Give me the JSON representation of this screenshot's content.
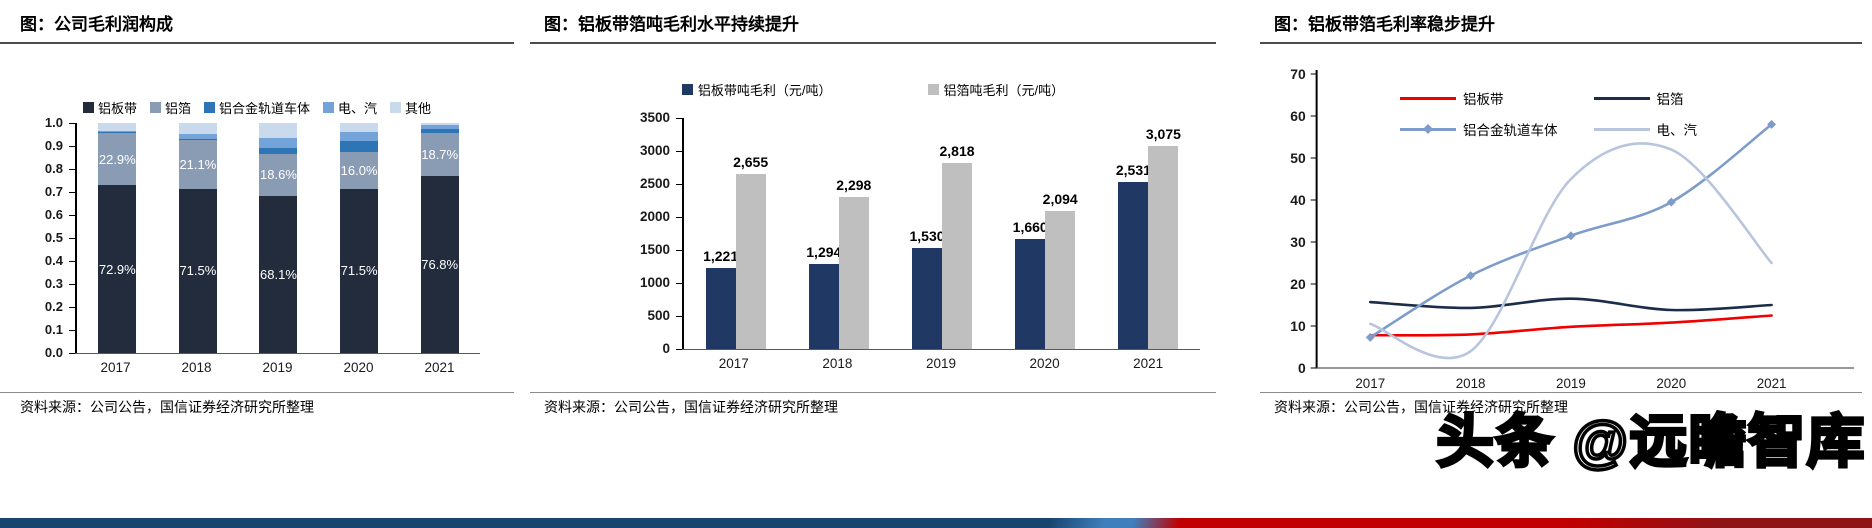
{
  "panels": [
    {
      "title": "图：公司毛利润构成",
      "source": "资料来源：公司公告，国信证券经济研究所整理"
    },
    {
      "title": "图：铝板带箔吨毛利水平持续提升",
      "source": "资料来源：公司公告，国信证券经济研究所整理"
    },
    {
      "title": "图：铝板带箔毛利率稳步提升",
      "source": "资料来源：公司公告，国信证券经济研究所整理"
    }
  ],
  "watermark": {
    "text": "头条 @远瞻智库"
  },
  "footer_band": {
    "left_color": "#17456F",
    "accent_color": "#3F7FBD",
    "right_color": "#C00000",
    "dark_right_color": "#8E1418"
  },
  "chart_data": [
    {
      "type": "bar",
      "subtype": "stacked-100pct",
      "title": "图：公司毛利润构成",
      "categories": [
        "2017",
        "2018",
        "2019",
        "2020",
        "2021"
      ],
      "ylim": [
        0.0,
        1.0
      ],
      "ytick_step": 0.1,
      "grid": false,
      "legend_position": "top",
      "unit": "%",
      "series": [
        {
          "name": "铝板带",
          "color": "#232C3D",
          "values": [
            72.9,
            71.5,
            68.1,
            71.5,
            76.8
          ],
          "labels_shown": true
        },
        {
          "name": "铝箔",
          "color": "#8A9BB4",
          "values": [
            22.9,
            21.1,
            18.6,
            16.0,
            18.7
          ],
          "labels_shown": true
        },
        {
          "name": "铝合金轨道车体",
          "color": "#2E75B6",
          "values": [
            0.3,
            0.5,
            2.6,
            4.8,
            1.8
          ],
          "labels_shown": false
        },
        {
          "name": "电、汽",
          "color": "#74A3D9",
          "values": [
            0.5,
            2.1,
            4.4,
            3.6,
            1.7
          ],
          "labels_shown": false
        },
        {
          "name": "其他",
          "color": "#C9DAED",
          "values": [
            3.4,
            4.8,
            6.3,
            4.1,
            1.0
          ],
          "labels_shown": false
        }
      ]
    },
    {
      "type": "bar",
      "subtype": "grouped",
      "title": "图：铝板带箔吨毛利水平持续提升",
      "categories": [
        "2017",
        "2018",
        "2019",
        "2020",
        "2021"
      ],
      "ylim": [
        0,
        3500
      ],
      "ytick_step": 500,
      "grid": false,
      "legend_position": "top",
      "data_labels": true,
      "series": [
        {
          "name": "铝板带吨毛利（元/吨）",
          "color": "#1F3864",
          "values": [
            1221,
            1294,
            1530,
            1660,
            2531
          ]
        },
        {
          "name": "铝箔吨毛利（元/吨）",
          "color": "#BFBFBF",
          "values": [
            2655,
            2298,
            2818,
            2094,
            3075
          ]
        }
      ]
    },
    {
      "type": "line",
      "subtype": "smooth",
      "title": "图：铝板带箔毛利率稳步提升",
      "categories": [
        "2017",
        "2018",
        "2019",
        "2020",
        "2021"
      ],
      "ylim": [
        0,
        70
      ],
      "ytick_step": 10,
      "grid": false,
      "legend_position": "top-right",
      "legend_order": [
        0,
        2,
        1,
        3
      ],
      "series": [
        {
          "name": "铝板带",
          "color": "#F20000",
          "values": [
            7.8,
            8.0,
            9.8,
            10.8,
            12.5
          ],
          "marker": false
        },
        {
          "name": "铝箔",
          "color": "#1C2D4A",
          "values": [
            15.7,
            14.3,
            16.5,
            13.8,
            15.0
          ],
          "marker": false
        },
        {
          "name": "铝合金轨道车体",
          "color": "#7E9CCB",
          "values": [
            7.3,
            22.0,
            31.5,
            39.5,
            58.0
          ],
          "marker": "diamond"
        },
        {
          "name": "电、汽",
          "color": "#B7C5DD",
          "values": [
            10.5,
            4.0,
            45.0,
            52.0,
            25.0
          ],
          "marker": false
        }
      ]
    }
  ]
}
